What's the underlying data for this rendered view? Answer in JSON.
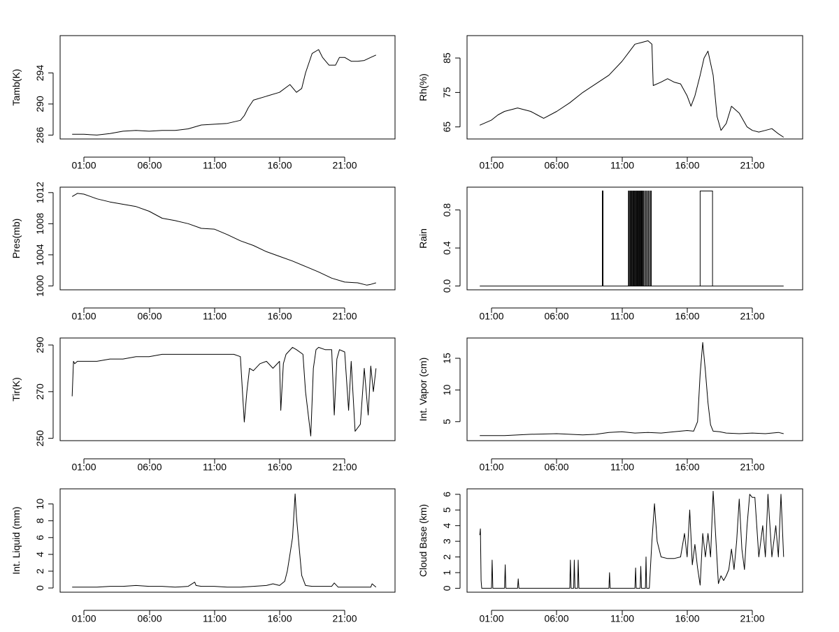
{
  "chart_data": [
    {
      "type": "line",
      "ylabel": "Tamb(K)",
      "x_ticks": [
        "01:00",
        "06:00",
        "11:00",
        "16:00",
        "21:00"
      ],
      "xlim_hours": [
        0,
        24
      ],
      "ylim": [
        285.5,
        298.8
      ],
      "y_ticks": [
        286,
        290,
        294
      ],
      "series": [
        {
          "x": [
            0.1,
            1,
            2,
            3,
            4,
            5,
            6,
            7,
            8,
            9,
            10,
            11,
            12,
            13,
            13.3,
            13.6,
            14,
            15,
            16,
            16.8,
            17.3,
            17.7,
            18,
            18.5,
            19.0,
            19.3,
            19.8,
            20.3,
            20.6,
            21,
            21.5,
            22,
            22.5,
            23,
            23.4
          ],
          "y": [
            286.1,
            286.1,
            286.0,
            286.2,
            286.5,
            286.6,
            286.5,
            286.6,
            286.6,
            286.8,
            287.3,
            287.4,
            287.5,
            287.9,
            288.5,
            289.5,
            290.5,
            291.0,
            291.5,
            292.5,
            291.5,
            292.0,
            294.0,
            296.5,
            297.0,
            296.0,
            295.0,
            295.0,
            296.0,
            296.0,
            295.5,
            295.5,
            295.6,
            296.0,
            296.3
          ]
        }
      ]
    },
    {
      "type": "line",
      "ylabel": "Rh(%)",
      "x_ticks": [
        "01:00",
        "06:00",
        "11:00",
        "16:00",
        "21:00"
      ],
      "xlim_hours": [
        0,
        24
      ],
      "ylim": [
        61.5,
        91.5
      ],
      "y_ticks": [
        65,
        75,
        85
      ],
      "series": [
        {
          "x": [
            0.1,
            1,
            1.5,
            2,
            3,
            4,
            4.5,
            5,
            6,
            7,
            8,
            9,
            10,
            11,
            11.5,
            12,
            12.5,
            13,
            13.3,
            13.4,
            14,
            14.5,
            15,
            15.5,
            16,
            16.3,
            16.6,
            17,
            17.3,
            17.6,
            18,
            18.3,
            18.6,
            19,
            19.4,
            19.7,
            20,
            20.3,
            20.6,
            21,
            21.5,
            22,
            22.5,
            23,
            23.4
          ],
          "y": [
            65.5,
            67,
            68.5,
            69.5,
            70.5,
            69.5,
            68.5,
            67.5,
            69.5,
            72,
            75,
            77.5,
            80,
            84,
            86.5,
            89,
            89.5,
            90,
            89,
            77,
            78,
            79,
            78,
            77.5,
            74,
            71,
            74,
            80,
            85,
            87,
            80,
            68,
            64,
            66,
            71,
            70,
            69,
            67,
            65,
            64,
            63.5,
            64,
            64.5,
            63,
            62
          ]
        }
      ]
    },
    {
      "type": "line",
      "ylabel": "Pres(mb)",
      "x_ticks": [
        "01:00",
        "06:00",
        "11:00",
        "16:00",
        "21:00"
      ],
      "xlim_hours": [
        0,
        24
      ],
      "ylim": [
        999.5,
        1012.7
      ],
      "y_ticks": [
        1000,
        1004,
        1008,
        1012
      ],
      "series": [
        {
          "x": [
            0.1,
            0.5,
            1,
            2,
            3,
            4,
            5,
            6,
            7,
            8,
            9,
            10,
            11,
            12,
            13,
            14,
            15,
            16,
            17,
            18,
            19,
            20,
            21,
            22,
            22.7,
            23.0,
            23.4
          ],
          "y": [
            1011.5,
            1011.9,
            1011.8,
            1011.2,
            1010.8,
            1010.5,
            1010.2,
            1009.6,
            1008.7,
            1008.4,
            1008.0,
            1007.4,
            1007.3,
            1006.6,
            1005.8,
            1005.2,
            1004.4,
            1003.8,
            1003.2,
            1002.5,
            1001.8,
            1001.0,
            1000.5,
            1000.4,
            1000.1,
            1000.2,
            1000.4
          ]
        }
      ]
    },
    {
      "type": "line",
      "ylabel": "Rain",
      "x_ticks": [
        "01:00",
        "06:00",
        "11:00",
        "16:00",
        "21:00"
      ],
      "xlim_hours": [
        0,
        24
      ],
      "ylim": [
        -0.04,
        1.04
      ],
      "y_ticks": [
        0.0,
        0.4,
        0.8
      ],
      "y_tick_labels": [
        "0.0",
        "0.4",
        "0.8"
      ],
      "series": [
        {
          "x": [
            0.1,
            9.5,
            9.5,
            9.55,
            9.55,
            23.4
          ],
          "y": [
            0,
            0,
            1,
            1,
            0,
            0
          ]
        }
      ],
      "pulses": [
        [
          11.5,
          11.55
        ],
        [
          11.62,
          11.66
        ],
        [
          11.72,
          11.76
        ],
        [
          11.82,
          11.87
        ],
        [
          11.92,
          11.96
        ],
        [
          12.02,
          12.06
        ],
        [
          12.12,
          12.17
        ],
        [
          12.22,
          12.26
        ],
        [
          12.32,
          12.36
        ],
        [
          12.42,
          12.47
        ],
        [
          12.52,
          12.56
        ],
        [
          12.62,
          12.66
        ],
        [
          12.75,
          12.8
        ],
        [
          12.9,
          12.95
        ],
        [
          13.05,
          13.1
        ],
        [
          13.2,
          13.25
        ],
        [
          17.0,
          17.95
        ]
      ]
    },
    {
      "type": "line",
      "ylabel": "Tir(K)",
      "x_ticks": [
        "01:00",
        "06:00",
        "11:00",
        "16:00",
        "21:00"
      ],
      "xlim_hours": [
        0,
        24
      ],
      "ylim": [
        249,
        293
      ],
      "y_ticks": [
        250,
        270,
        290
      ],
      "series": [
        {
          "x": [
            0.1,
            0.2,
            0.3,
            0.5,
            1,
            2,
            3,
            4,
            5,
            6,
            7,
            8,
            9,
            10,
            11,
            12,
            12.5,
            13,
            13.3,
            13.5,
            13.7,
            14,
            14.5,
            15,
            15.5,
            16,
            16.1,
            16.3,
            16.5,
            17,
            17.3,
            17.8,
            18,
            18.4,
            18.6,
            18.8,
            19,
            19.5,
            20,
            20.2,
            20.4,
            20.6,
            21,
            21.3,
            21.5,
            21.8,
            22.2,
            22.5,
            22.8,
            23,
            23.2,
            23.4
          ],
          "y": [
            268,
            283,
            282,
            283,
            283,
            283,
            284,
            284,
            285,
            285,
            286,
            286,
            286,
            286,
            286,
            286,
            286,
            285,
            257,
            270,
            280,
            279,
            282,
            283,
            280,
            283,
            262,
            282,
            286,
            289,
            288,
            286,
            270,
            251,
            280,
            288,
            289,
            288,
            288,
            260,
            284,
            288,
            287,
            262,
            283,
            253,
            256,
            280,
            260,
            281,
            270,
            280
          ]
        }
      ]
    },
    {
      "type": "line",
      "ylabel": "Int. Vapor (cm)",
      "x_ticks": [
        "01:00",
        "06:00",
        "11:00",
        "16:00",
        "21:00"
      ],
      "xlim_hours": [
        0,
        24
      ],
      "ylim": [
        2.0,
        18.2
      ],
      "y_ticks": [
        5,
        10,
        15
      ],
      "series": [
        {
          "x": [
            0.1,
            2,
            4,
            6,
            8,
            9,
            10,
            11,
            12,
            13,
            14,
            15,
            16,
            16.5,
            16.8,
            17.0,
            17.2,
            17.4,
            17.6,
            17.8,
            18.0,
            18.5,
            19,
            20,
            21,
            22,
            23,
            23.4
          ],
          "y": [
            2.8,
            2.8,
            3.0,
            3.1,
            2.9,
            3.0,
            3.3,
            3.4,
            3.2,
            3.3,
            3.2,
            3.4,
            3.6,
            3.5,
            5.0,
            12.5,
            17.5,
            13.0,
            8.0,
            4.5,
            3.5,
            3.4,
            3.2,
            3.1,
            3.2,
            3.1,
            3.3,
            3.1
          ]
        }
      ]
    },
    {
      "type": "line",
      "ylabel": "Int. Liquid (mm)",
      "x_ticks": [
        "01:00",
        "06:00",
        "11:00",
        "16:00",
        "21:00"
      ],
      "xlim_hours": [
        0,
        24
      ],
      "ylim": [
        -0.5,
        11.8
      ],
      "y_ticks": [
        0,
        2,
        4,
        6,
        8,
        10
      ],
      "series": [
        {
          "x": [
            0.1,
            1,
            2,
            3,
            4,
            5,
            6,
            7,
            8,
            9,
            9.5,
            9.6,
            10,
            11,
            12,
            13,
            14,
            15,
            15.5,
            16,
            16.4,
            16.6,
            16.8,
            17.0,
            17.2,
            17.3,
            17.5,
            17.7,
            18,
            18.5,
            19,
            20,
            20.2,
            20.5,
            21,
            22,
            23,
            23.1,
            23.4
          ],
          "y": [
            0.1,
            0.1,
            0.1,
            0.2,
            0.2,
            0.3,
            0.2,
            0.2,
            0.1,
            0.2,
            0.7,
            0.3,
            0.2,
            0.2,
            0.1,
            0.1,
            0.2,
            0.3,
            0.5,
            0.3,
            0.8,
            2.0,
            4.0,
            6.0,
            11.2,
            8.5,
            5.0,
            1.5,
            0.3,
            0.2,
            0.2,
            0.2,
            0.6,
            0.1,
            0.1,
            0.1,
            0.1,
            0.5,
            0.1
          ]
        }
      ]
    },
    {
      "type": "line",
      "ylabel": "Cloud Base (km)",
      "x_ticks": [
        "01:00",
        "06:00",
        "11:00",
        "16:00",
        "21:00"
      ],
      "xlim_hours": [
        0,
        24
      ],
      "ylim": [
        -0.25,
        6.35
      ],
      "y_ticks": [
        0,
        1,
        2,
        3,
        4,
        5,
        6
      ],
      "series": [
        {
          "x": [
            0.1,
            0.15,
            0.2,
            0.25,
            1.0,
            1.05,
            1.1,
            2.0,
            2.05,
            2.1,
            3.0,
            3.05,
            3.1,
            7.0,
            7.05,
            7.1,
            7.3,
            7.35,
            7.4,
            7.6,
            7.65,
            7.7,
            10.0,
            10.05,
            10.1,
            12.0,
            12.05,
            12.1,
            12.4,
            12.45,
            12.5,
            12.8,
            12.85,
            12.9,
            13.1,
            13.3,
            13.5,
            13.7,
            14,
            14.5,
            15,
            15.5,
            15.8,
            16,
            16.2,
            16.4,
            16.6,
            16.8,
            17,
            17.2,
            17.4,
            17.6,
            17.8,
            18,
            18.2,
            18.4,
            18.6,
            18.8,
            19,
            19.2,
            19.4,
            19.6,
            19.8,
            20,
            20.2,
            20.4,
            20.6,
            20.8,
            21,
            21.2,
            21.5,
            21.8,
            22,
            22.2,
            22.5,
            22.8,
            23,
            23.2,
            23.4
          ],
          "y": [
            3.4,
            3.8,
            0.5,
            0.0,
            0.0,
            1.8,
            0.0,
            0.0,
            1.5,
            0.0,
            0.0,
            0.6,
            0.0,
            0.0,
            1.8,
            0.0,
            0.0,
            1.8,
            0.0,
            0.0,
            1.8,
            0.0,
            0.0,
            1.0,
            0.0,
            0.0,
            1.3,
            0.0,
            0.0,
            1.4,
            0.0,
            0.0,
            2.0,
            0.0,
            0.0,
            3.0,
            5.4,
            3.0,
            2.0,
            1.9,
            1.9,
            2.0,
            3.5,
            2.0,
            5.0,
            1.5,
            2.8,
            1.3,
            0.2,
            3.5,
            2.0,
            3.5,
            2.0,
            6.2,
            3.2,
            0.3,
            0.8,
            0.5,
            0.8,
            1.2,
            2.5,
            1.2,
            3.0,
            5.7,
            2.5,
            1.2,
            4.0,
            6.0,
            5.8,
            5.8,
            2.0,
            4.0,
            2.0,
            6.0,
            2.0,
            4.0,
            2.0,
            6.0,
            2.0
          ]
        }
      ]
    }
  ]
}
